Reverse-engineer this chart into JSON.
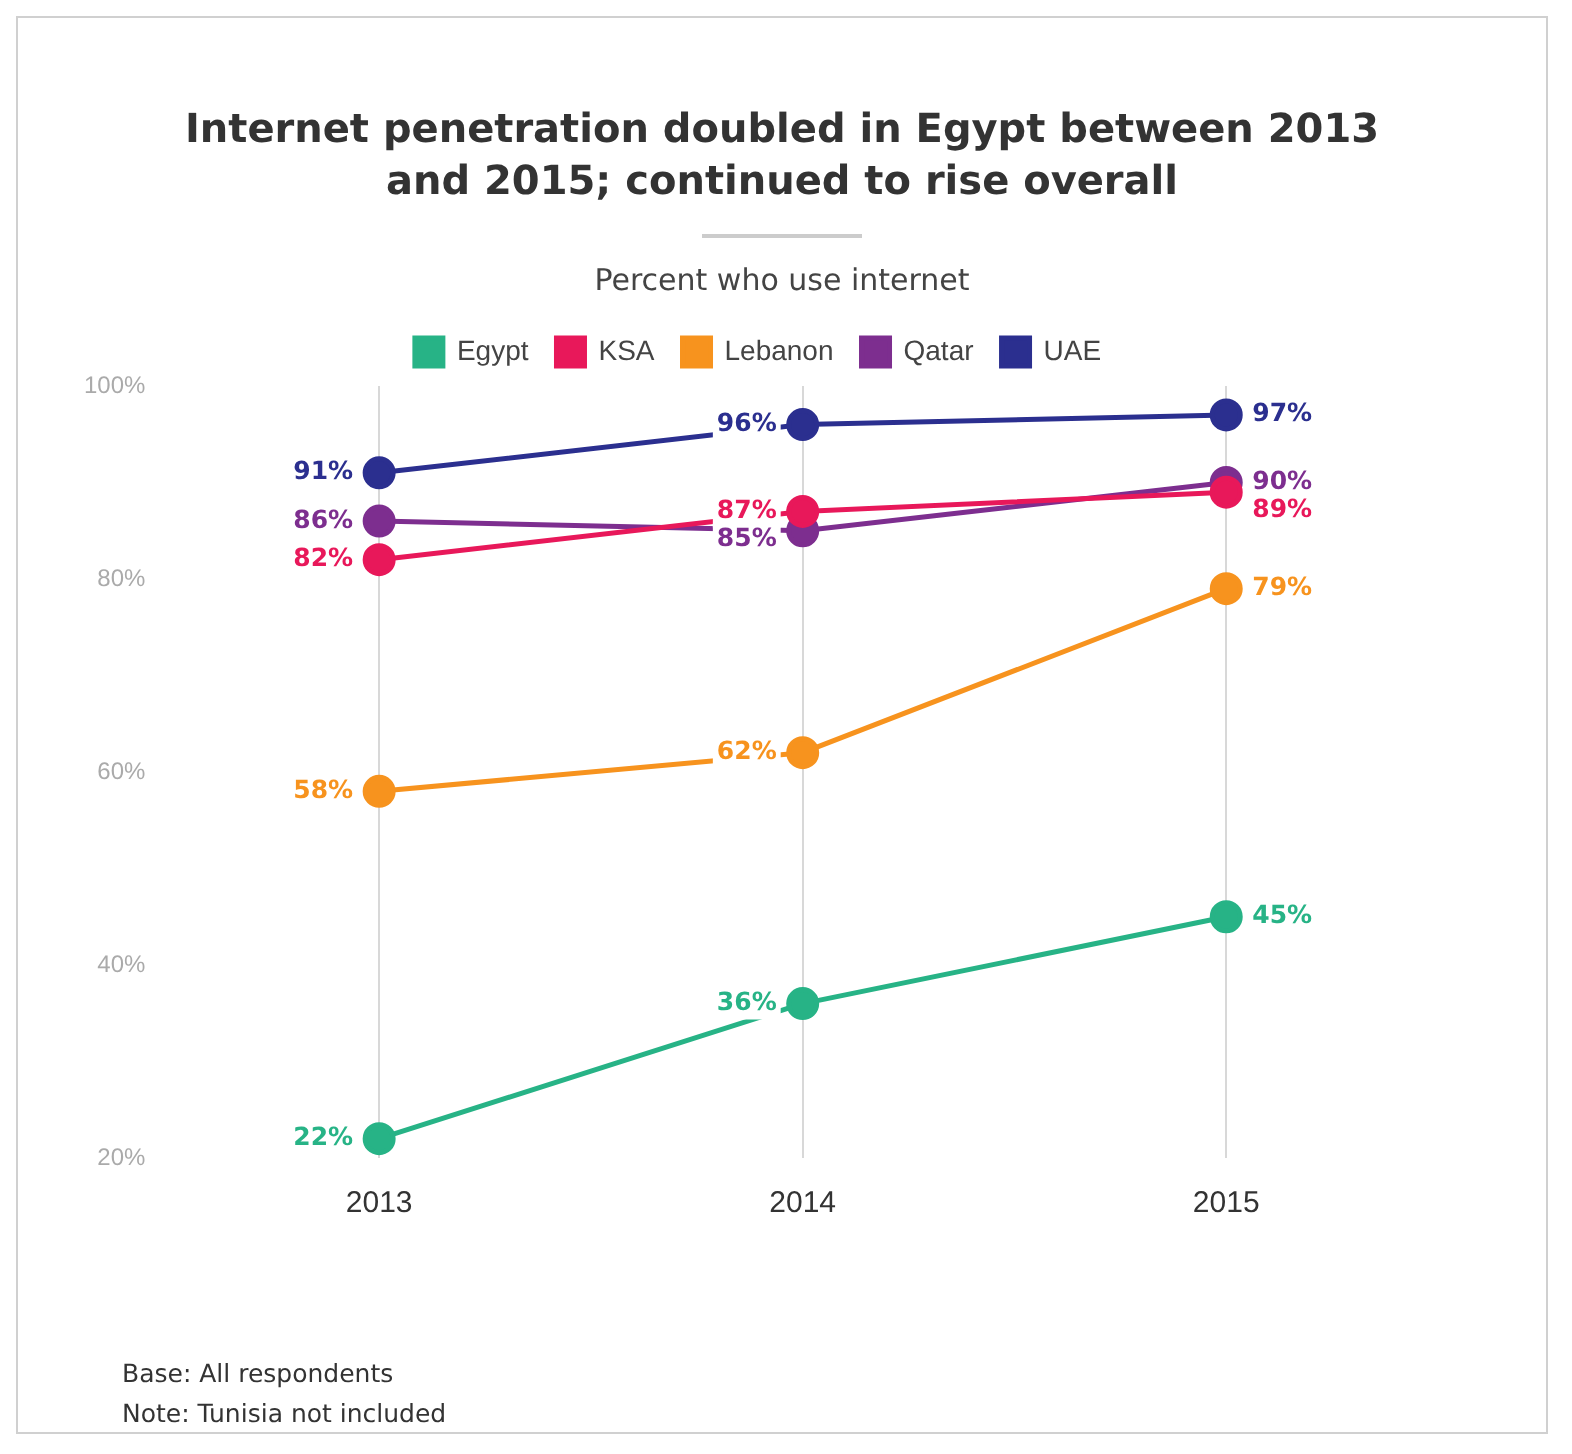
{
  "chart_data": {
    "type": "line",
    "title": "Internet penetration doubled in Egypt between 2013 and 2015; continued to rise overall",
    "subtitle": "Percent who use internet",
    "categories": [
      "2013",
      "2014",
      "2015"
    ],
    "series": [
      {
        "name": "Egypt",
        "color": "#27b386",
        "values": [
          22,
          36,
          45
        ],
        "value_labels": [
          "22%",
          "36%",
          "45%"
        ]
      },
      {
        "name": "KSA",
        "color": "#e8185a",
        "values": [
          82,
          87,
          89
        ],
        "value_labels": [
          "82%",
          "87%",
          "89%"
        ]
      },
      {
        "name": "Lebanon",
        "color": "#f7931e",
        "values": [
          58,
          62,
          79
        ],
        "value_labels": [
          "58%",
          "62%",
          "79%"
        ]
      },
      {
        "name": "Qatar",
        "color": "#7d2e8f",
        "values": [
          86,
          85,
          90
        ],
        "value_labels": [
          "86%",
          "85%",
          "90%"
        ]
      },
      {
        "name": "UAE",
        "color": "#2b2f8f",
        "values": [
          91,
          96,
          97
        ],
        "value_labels": [
          "91%",
          "96%",
          "97%"
        ]
      }
    ],
    "ylim": [
      20,
      100
    ],
    "yticks": [
      {
        "value": 20,
        "label": "20%"
      },
      {
        "value": 40,
        "label": "40%"
      },
      {
        "value": 60,
        "label": "60%"
      },
      {
        "value": 80,
        "label": "80%"
      },
      {
        "value": 100,
        "label": "100%"
      }
    ],
    "grid": "x",
    "legend": "top",
    "marker": "circle",
    "line_style": "solid",
    "annotations": [
      "Base: All respondents",
      "Note: Tunisia not included"
    ]
  }
}
